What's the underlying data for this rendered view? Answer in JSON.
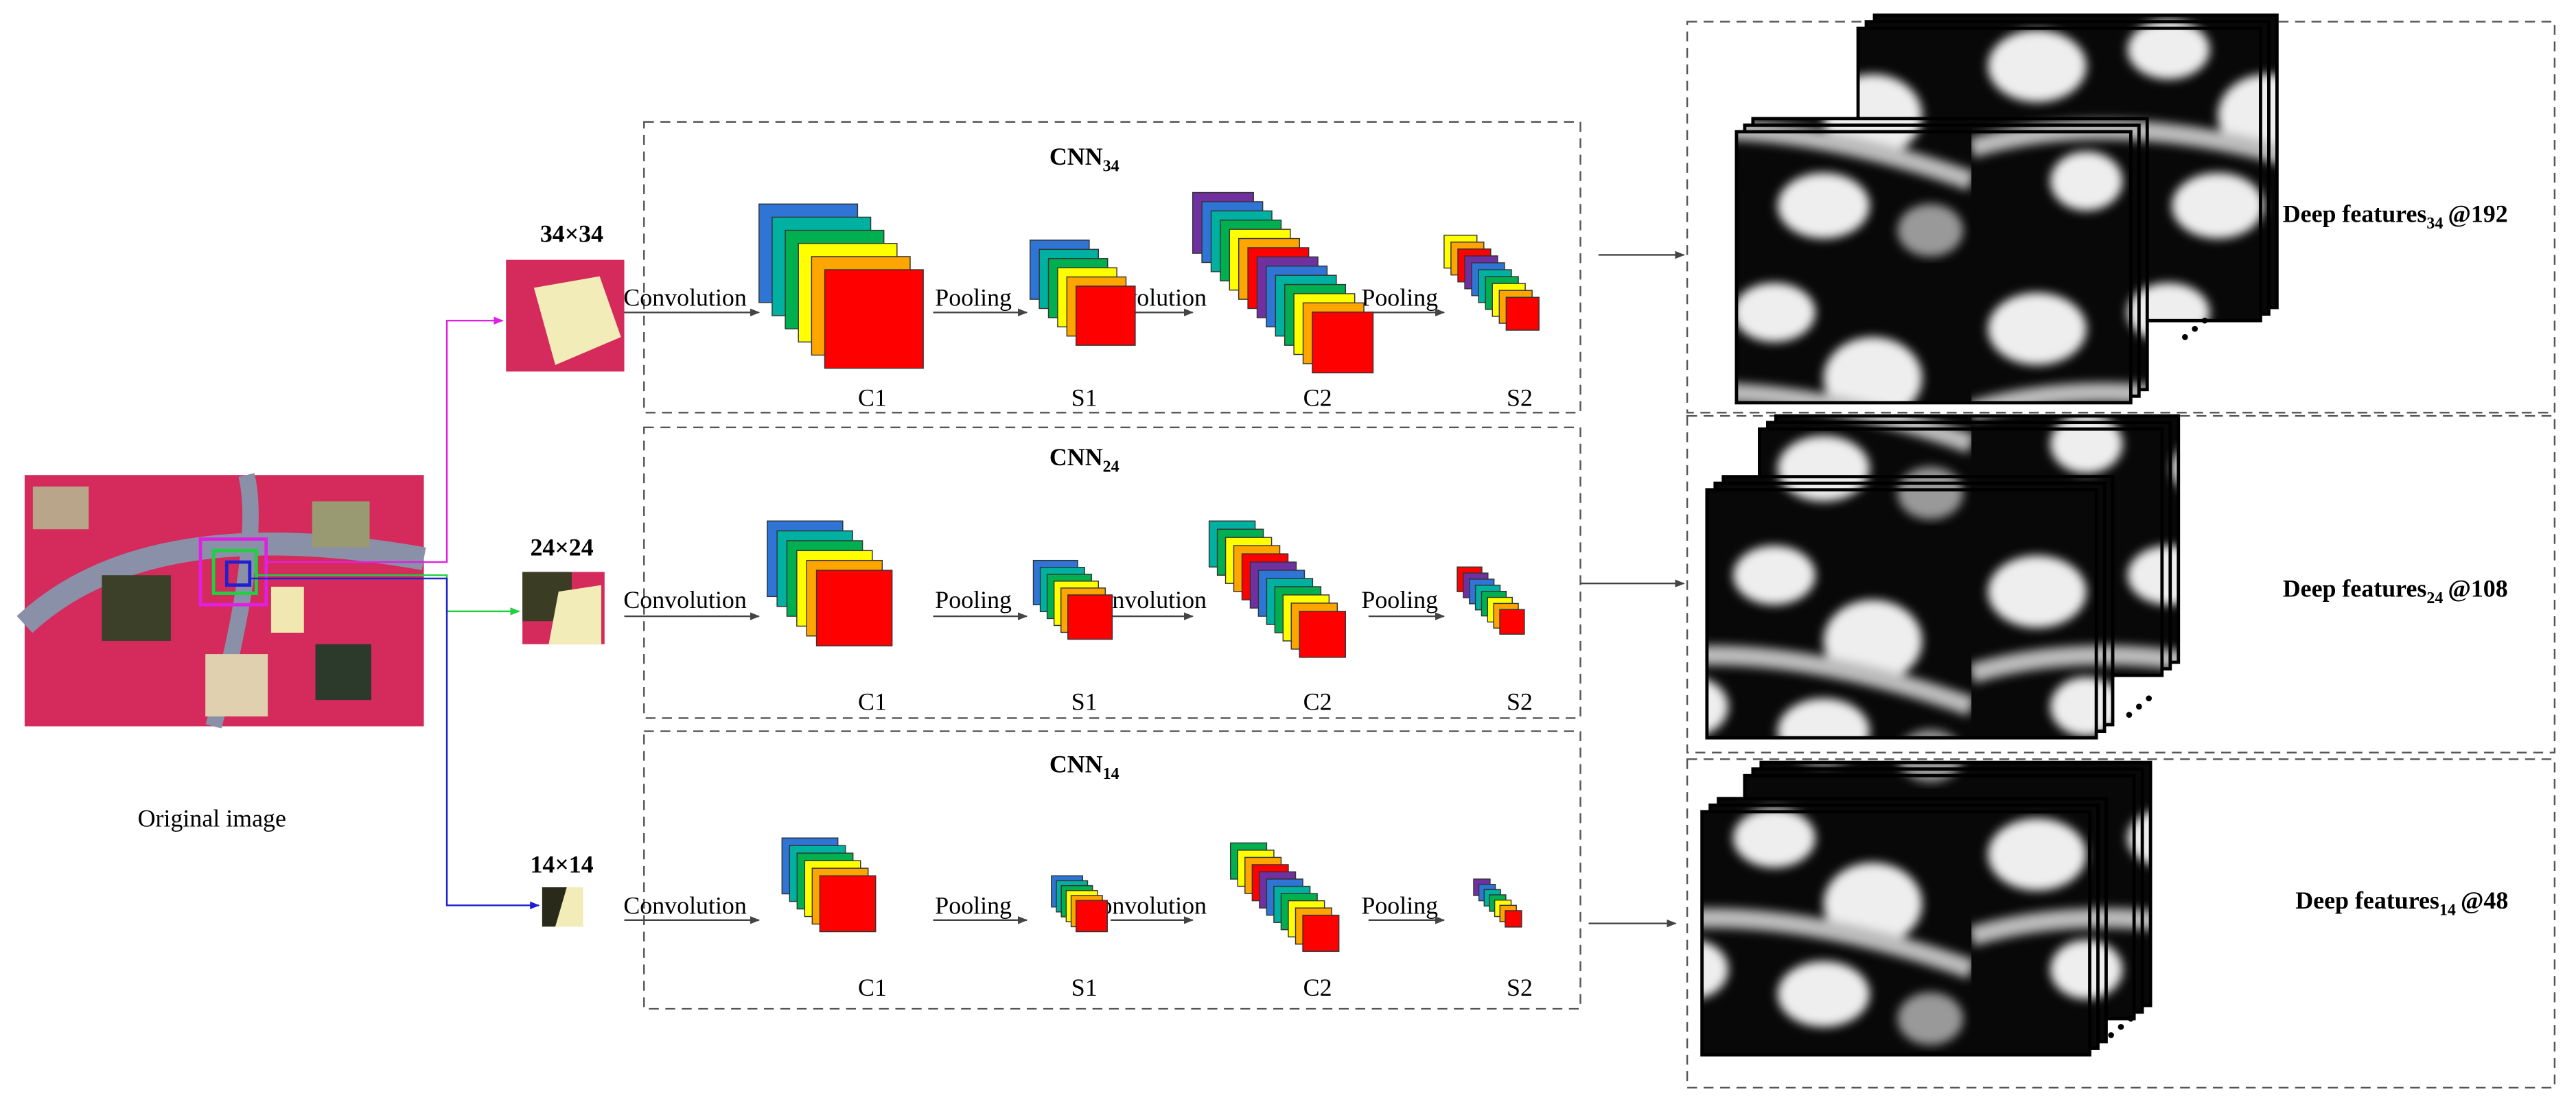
{
  "original_image": {
    "label": "Original image"
  },
  "branches": [
    {
      "patch_size": "34×34",
      "cnn": {
        "name": "CNN",
        "sub": "34"
      },
      "ops": [
        "Convolution",
        "Pooling",
        "Convolution",
        "Pooling"
      ],
      "layers": [
        "C1",
        "S1",
        "C2",
        "S2"
      ],
      "features": {
        "name": "Deep features",
        "sub": "34",
        "count": "@192"
      }
    },
    {
      "patch_size": "24×24",
      "cnn": {
        "name": "CNN",
        "sub": "24"
      },
      "ops": [
        "Convolution",
        "Pooling",
        "Convolution",
        "Pooling"
      ],
      "layers": [
        "C1",
        "S1",
        "C2",
        "S2"
      ],
      "features": {
        "name": "Deep features",
        "sub": "24",
        "count": "@108"
      }
    },
    {
      "patch_size": "14×14",
      "cnn": {
        "name": "CNN",
        "sub": "14"
      },
      "ops": [
        "Convolution",
        "Pooling",
        "Convolution",
        "Pooling"
      ],
      "layers": [
        "C1",
        "S1",
        "C2",
        "S2"
      ],
      "features": {
        "name": "Deep features",
        "sub": "14",
        "count": "@48"
      }
    }
  ]
}
